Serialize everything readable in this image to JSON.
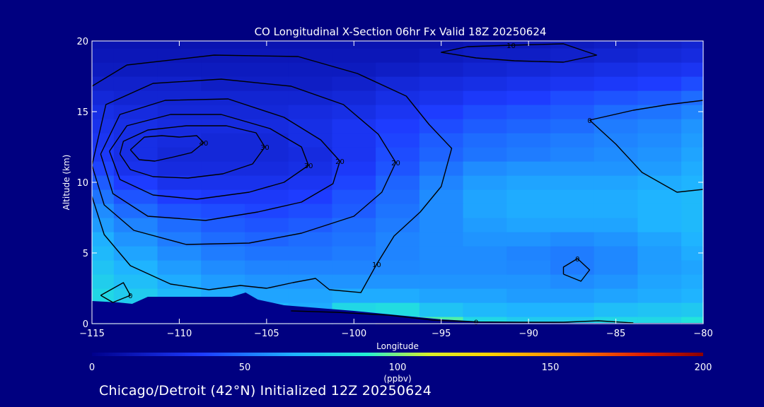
{
  "chart_data": {
    "type": "heatmap",
    "title": "CO Longitudinal X-Section 06hr  Fx Valid 18Z 20250624",
    "xlabel": "Longitude",
    "ylabel": "Altitude (km)",
    "xlim": [
      -115,
      -80
    ],
    "ylim": [
      0,
      20
    ],
    "x_ticks": [
      -115,
      -110,
      -105,
      -100,
      -95,
      -90,
      -85,
      -80
    ],
    "x_tick_labels": [
      "−115",
      "−110",
      "−105",
      "−100",
      "−95",
      "−90",
      "−85",
      "−80"
    ],
    "y_ticks": [
      0,
      5,
      10,
      15,
      20
    ],
    "y_tick_labels": [
      "0",
      "5",
      "10",
      "15",
      "20"
    ],
    "colorbar": {
      "min": 0,
      "max": 200,
      "ticks": [
        0,
        50,
        100,
        150,
        200
      ],
      "tick_labels": [
        "0",
        "50",
        "100",
        "150",
        "200"
      ],
      "unit": "(ppbv)"
    },
    "field_x": [
      -115,
      -112.5,
      -110,
      -107.5,
      -105,
      -102.5,
      -100,
      -97.5,
      -95,
      -92.5,
      -90,
      -87.5,
      -85,
      -82.5,
      -80
    ],
    "field_y": [
      0,
      1,
      2,
      3,
      4,
      5,
      6,
      7,
      8,
      9,
      10,
      11,
      12,
      13,
      14,
      15,
      16,
      17,
      18,
      19,
      20
    ],
    "field_rows": [
      [
        85,
        85,
        70,
        70,
        70,
        70,
        70,
        110,
        95,
        80,
        75,
        75,
        80,
        80,
        85
      ],
      [
        85,
        78,
        70,
        68,
        66,
        64,
        80,
        82,
        72,
        68,
        66,
        66,
        70,
        72,
        74
      ],
      [
        80,
        75,
        68,
        64,
        62,
        62,
        64,
        64,
        62,
        62,
        60,
        60,
        62,
        64,
        66
      ],
      [
        76,
        70,
        64,
        60,
        58,
        58,
        58,
        58,
        58,
        58,
        58,
        56,
        58,
        62,
        64
      ],
      [
        72,
        66,
        60,
        56,
        54,
        54,
        54,
        55,
        56,
        56,
        55,
        52,
        55,
        60,
        62
      ],
      [
        68,
        62,
        56,
        52,
        50,
        50,
        52,
        54,
        56,
        56,
        54,
        52,
        55,
        60,
        64
      ],
      [
        65,
        58,
        52,
        48,
        46,
        48,
        50,
        54,
        56,
        58,
        58,
        56,
        58,
        62,
        66
      ],
      [
        60,
        54,
        48,
        44,
        42,
        44,
        48,
        52,
        56,
        60,
        62,
        62,
        62,
        66,
        68
      ],
      [
        56,
        48,
        42,
        40,
        38,
        40,
        44,
        50,
        56,
        62,
        64,
        64,
        64,
        66,
        68
      ],
      [
        50,
        42,
        36,
        34,
        34,
        36,
        42,
        48,
        56,
        62,
        64,
        64,
        64,
        66,
        68
      ],
      [
        44,
        36,
        30,
        30,
        30,
        32,
        38,
        46,
        54,
        60,
        62,
        62,
        62,
        64,
        66
      ],
      [
        38,
        30,
        26,
        26,
        26,
        28,
        34,
        42,
        50,
        56,
        58,
        58,
        58,
        60,
        64
      ],
      [
        34,
        28,
        24,
        24,
        24,
        26,
        32,
        40,
        46,
        50,
        52,
        54,
        56,
        58,
        62
      ],
      [
        32,
        28,
        26,
        24,
        24,
        28,
        32,
        38,
        44,
        48,
        50,
        52,
        54,
        56,
        60
      ],
      [
        30,
        28,
        26,
        26,
        26,
        28,
        32,
        36,
        40,
        44,
        46,
        48,
        52,
        54,
        58
      ],
      [
        28,
        26,
        24,
        24,
        24,
        26,
        28,
        32,
        36,
        40,
        42,
        44,
        48,
        50,
        54
      ],
      [
        24,
        22,
        22,
        22,
        22,
        22,
        24,
        28,
        30,
        34,
        36,
        40,
        42,
        44,
        48
      ],
      [
        20,
        20,
        20,
        18,
        18,
        18,
        20,
        24,
        26,
        28,
        30,
        32,
        34,
        36,
        40
      ],
      [
        16,
        16,
        16,
        16,
        16,
        16,
        16,
        18,
        20,
        22,
        24,
        26,
        28,
        30,
        32
      ],
      [
        14,
        14,
        14,
        14,
        14,
        14,
        14,
        14,
        16,
        18,
        18,
        20,
        22,
        24,
        26
      ],
      [
        12,
        12,
        12,
        12,
        12,
        12,
        12,
        12,
        12,
        14,
        14,
        16,
        18,
        20,
        22
      ]
    ],
    "terrain_x": [
      -115,
      -113.5,
      -112.7,
      -111.8,
      -109.5,
      -107,
      -106.2,
      -105.5,
      -104,
      -102,
      -100,
      -97.5,
      -95,
      -92,
      -90,
      -87,
      -85,
      -82,
      -80
    ],
    "terrain_y": [
      1.6,
      1.5,
      1.4,
      1.9,
      1.9,
      1.9,
      2.2,
      1.7,
      1.3,
      1.1,
      0.9,
      0.6,
      0.3,
      0.1,
      0.1,
      0.05,
      0.05,
      0.05,
      0.05
    ],
    "contours": [
      {
        "label": "40",
        "points": [
          [
            -112.8,
            12.3
          ],
          [
            -112.3,
            11.6
          ],
          [
            -111.4,
            11.5
          ],
          [
            -110.3,
            11.8
          ],
          [
            -109.3,
            12.1
          ],
          [
            -108.6,
            12.8
          ],
          [
            -109.0,
            13.3
          ],
          [
            -110.0,
            13.2
          ],
          [
            -111.0,
            13.3
          ],
          [
            -112.0,
            13.2
          ],
          [
            -112.8,
            12.3
          ]
        ]
      },
      {
        "label": "30",
        "points": [
          [
            -113.4,
            12.0
          ],
          [
            -112.8,
            10.9
          ],
          [
            -111.5,
            10.4
          ],
          [
            -109.5,
            10.3
          ],
          [
            -107.5,
            10.6
          ],
          [
            -105.8,
            11.3
          ],
          [
            -105.1,
            12.5
          ],
          [
            -105.6,
            13.5
          ],
          [
            -107.3,
            14.0
          ],
          [
            -109.6,
            14.0
          ],
          [
            -111.8,
            13.7
          ],
          [
            -113.2,
            12.9
          ],
          [
            -113.4,
            12.0
          ]
        ]
      },
      {
        "label": "30",
        "points": [
          [
            -114.0,
            12.2
          ],
          [
            -113.4,
            10.2
          ],
          [
            -111.5,
            9.1
          ],
          [
            -109.0,
            8.8
          ],
          [
            -106.0,
            9.3
          ],
          [
            -104.0,
            10.0
          ],
          [
            -102.6,
            11.2
          ],
          [
            -103.0,
            12.5
          ],
          [
            -104.8,
            13.8
          ],
          [
            -107.6,
            14.8
          ],
          [
            -110.5,
            14.8
          ],
          [
            -113.0,
            14.0
          ],
          [
            -114.0,
            12.2
          ]
        ]
      },
      {
        "label": "20",
        "points": [
          [
            -114.5,
            12.0
          ],
          [
            -113.8,
            9.2
          ],
          [
            -111.8,
            7.6
          ],
          [
            -108.5,
            7.3
          ],
          [
            -105.5,
            7.9
          ],
          [
            -103.0,
            8.6
          ],
          [
            -101.2,
            9.9
          ],
          [
            -100.8,
            11.5
          ],
          [
            -101.9,
            13.0
          ],
          [
            -104.0,
            14.6
          ],
          [
            -107.2,
            15.9
          ],
          [
            -110.8,
            15.8
          ],
          [
            -113.4,
            14.8
          ],
          [
            -114.5,
            12.0
          ]
        ]
      },
      {
        "label": "20",
        "points": [
          [
            -115.0,
            11.2
          ],
          [
            -114.3,
            8.4
          ],
          [
            -112.6,
            6.6
          ],
          [
            -109.6,
            5.6
          ],
          [
            -106.0,
            5.7
          ],
          [
            -103.0,
            6.4
          ],
          [
            -100.0,
            7.6
          ],
          [
            -98.4,
            9.3
          ],
          [
            -97.6,
            11.4
          ],
          [
            -98.6,
            13.4
          ],
          [
            -100.6,
            15.5
          ],
          [
            -103.6,
            16.8
          ],
          [
            -107.6,
            17.3
          ],
          [
            -111.5,
            17.0
          ],
          [
            -114.2,
            15.5
          ],
          [
            -115.0,
            11.2
          ]
        ]
      },
      {
        "label": "10",
        "points": [
          [
            -115.0,
            9.0
          ],
          [
            -114.3,
            6.3
          ],
          [
            -112.8,
            4.1
          ],
          [
            -110.5,
            2.8
          ],
          [
            -108.3,
            2.4
          ],
          [
            -106.5,
            2.7
          ],
          [
            -105.0,
            2.5
          ],
          [
            -103.5,
            2.9
          ],
          [
            -102.2,
            3.2
          ],
          [
            -101.4,
            2.4
          ],
          [
            -99.6,
            2.2
          ],
          [
            -98.7,
            4.2
          ],
          [
            -97.7,
            6.2
          ],
          [
            -96.2,
            7.9
          ],
          [
            -95.0,
            9.7
          ],
          [
            -94.4,
            12.4
          ],
          [
            -95.7,
            14.1
          ],
          [
            -97.0,
            16.1
          ],
          [
            -99.8,
            17.7
          ],
          [
            -103.2,
            18.9
          ],
          [
            -108.0,
            19.0
          ],
          [
            -113.0,
            18.3
          ],
          [
            -115.0,
            16.8
          ]
        ]
      },
      {
        "label": "0",
        "points": [
          [
            -103.6,
            0.9
          ],
          [
            -101.0,
            0.8
          ],
          [
            -98.0,
            0.6
          ],
          [
            -95.5,
            0.25
          ],
          [
            -93.0,
            0.12
          ],
          [
            -90.5,
            0.1
          ],
          [
            -88.0,
            0.1
          ],
          [
            -86.0,
            0.2
          ],
          [
            -84.0,
            0.05
          ]
        ]
      },
      {
        "label": "0",
        "points": [
          [
            -80.0,
            9.5
          ],
          [
            -81.5,
            9.3
          ],
          [
            -83.5,
            10.7
          ],
          [
            -85.0,
            12.7
          ],
          [
            -86.5,
            14.4
          ],
          [
            -84.0,
            15.1
          ],
          [
            -82.0,
            15.5
          ],
          [
            -80.0,
            15.8
          ]
        ]
      },
      {
        "label": "0",
        "points": [
          [
            -88.0,
            3.5
          ],
          [
            -87.0,
            3.0
          ],
          [
            -86.5,
            3.8
          ],
          [
            -87.2,
            4.6
          ],
          [
            -88.0,
            4.0
          ],
          [
            -88.0,
            3.5
          ]
        ]
      },
      {
        "label": "0",
        "points": [
          [
            -114.5,
            2.0
          ],
          [
            -113.2,
            2.9
          ],
          [
            -112.8,
            2.0
          ],
          [
            -113.8,
            1.5
          ],
          [
            -114.5,
            2.0
          ]
        ]
      },
      {
        "label": "10",
        "points": [
          [
            -90.8,
            18.6
          ],
          [
            -93.0,
            18.8
          ],
          [
            -95.0,
            19.2
          ],
          [
            -93.5,
            19.6
          ],
          [
            -91.0,
            19.7
          ],
          [
            -88.0,
            19.8
          ],
          [
            -86.1,
            19.0
          ],
          [
            -88.0,
            18.5
          ],
          [
            -90.8,
            18.6
          ]
        ]
      }
    ]
  },
  "footer_text": "Chicago/Detroit (42°N) Initialized 12Z 20250624"
}
